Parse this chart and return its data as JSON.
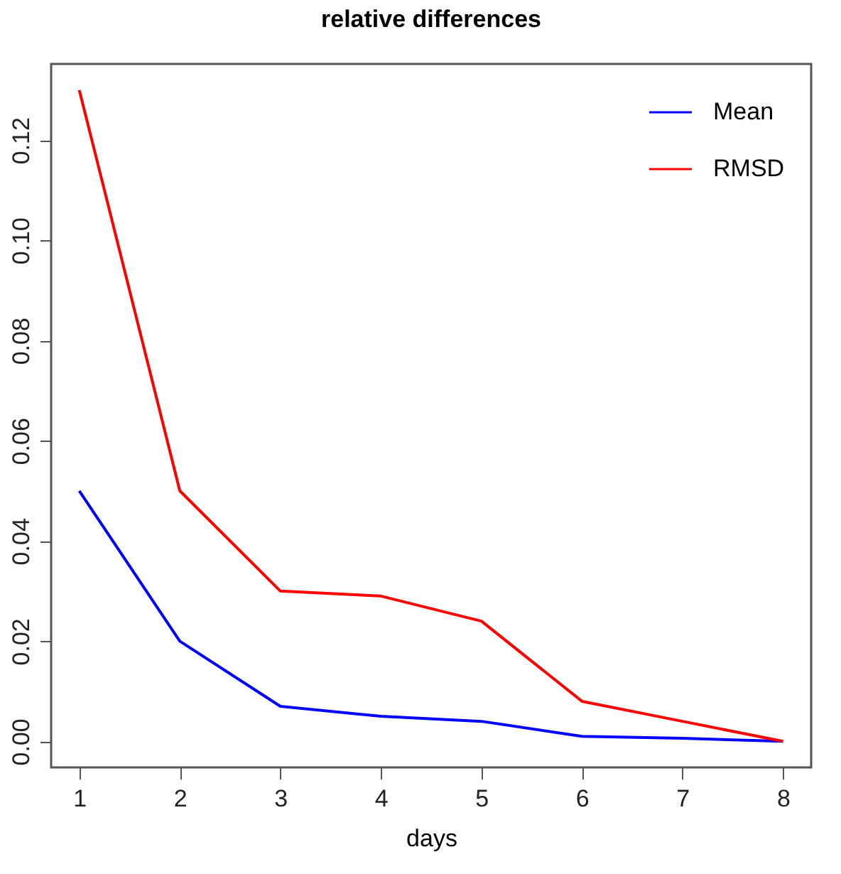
{
  "chart_data": {
    "type": "line",
    "title": "relative differences",
    "xlabel": "days",
    "x": [
      1,
      2,
      3,
      4,
      5,
      6,
      7,
      8
    ],
    "series": [
      {
        "name": "Mean",
        "color": "#0000ff",
        "values": [
          0.05,
          0.02,
          0.007,
          0.005,
          0.004,
          0.001,
          0.0006,
          0
        ]
      },
      {
        "name": "RMSD",
        "color": "#ff0000",
        "values": [
          0.13,
          0.05,
          0.03,
          0.029,
          0.024,
          0.008,
          0.004,
          0
        ]
      }
    ],
    "xlim": [
      0.72,
      8.28
    ],
    "xticks": [
      1,
      2,
      3,
      4,
      5,
      6,
      7,
      8
    ],
    "ylim": [
      -0.0052,
      0.1352
    ],
    "yticks": [
      {
        "value": 0,
        "label": "0.00"
      },
      {
        "value": 0.02,
        "label": "0.02"
      },
      {
        "value": 0.04,
        "label": "0.04"
      },
      {
        "value": 0.06,
        "label": "0.06"
      },
      {
        "value": 0.08,
        "label": "0.08"
      },
      {
        "value": 0.1,
        "label": "0.10"
      },
      {
        "value": 0.12,
        "label": "0.12"
      }
    ],
    "grid": false,
    "legend": "top right",
    "marker": "none",
    "line_style": "solid"
  }
}
